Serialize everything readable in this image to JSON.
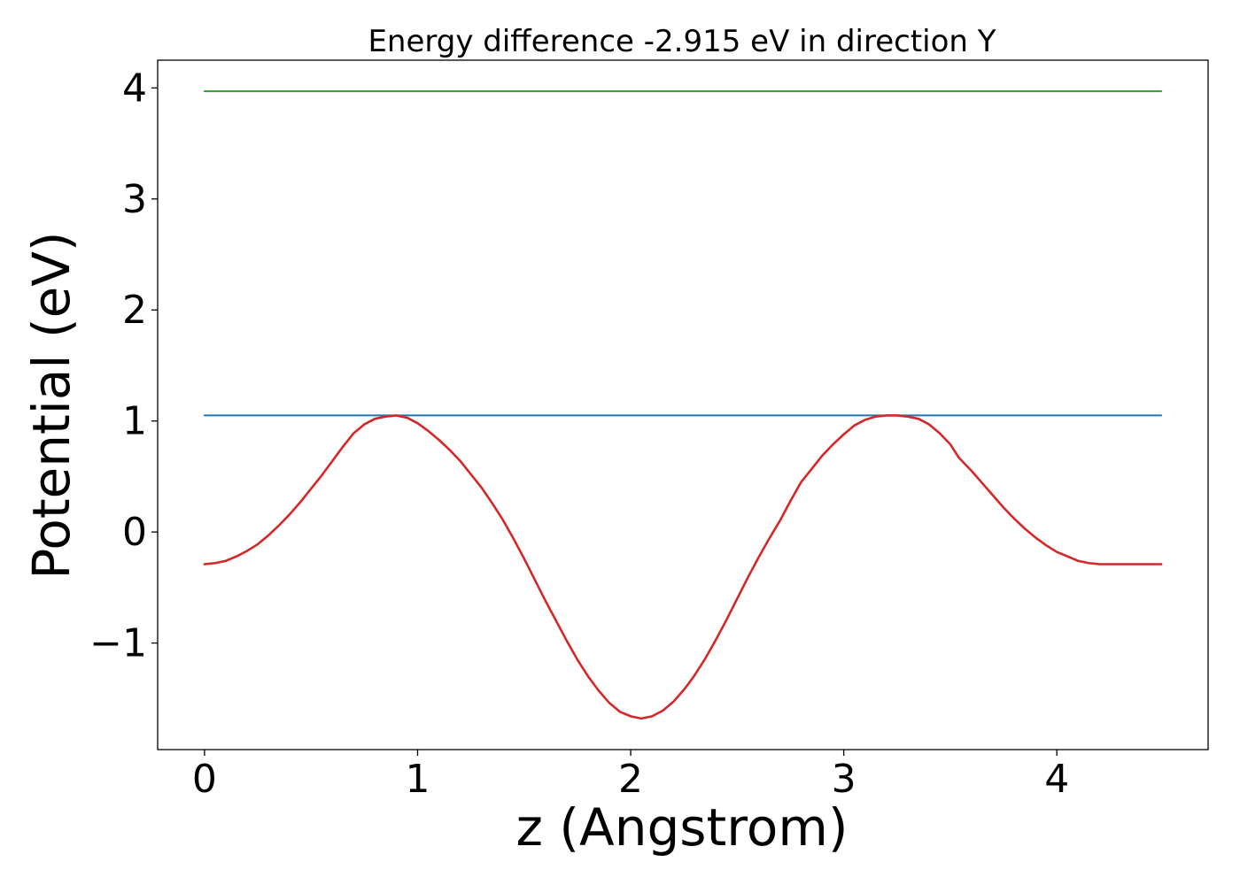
{
  "chart_data": {
    "type": "line",
    "title": "Energy difference -2.915 eV in direction Y",
    "xlabel": "z (Angstrom)",
    "ylabel": "Potential (eV)",
    "xlim": [
      -0.22,
      4.71
    ],
    "ylim": [
      -1.96,
      4.25
    ],
    "xticks": [
      0,
      1,
      2,
      3,
      4
    ],
    "xtick_labels": [
      "0",
      "1",
      "2",
      "3",
      "4"
    ],
    "yticks": [
      -1,
      0,
      1,
      2,
      3,
      4
    ],
    "ytick_labels": [
      "−1",
      "0",
      "1",
      "2",
      "3",
      "4"
    ],
    "grid": false,
    "legend": "none",
    "series": [
      {
        "color": "#2ca02c",
        "style": "horizontal",
        "x": [
          0,
          4.49
        ],
        "y": [
          3.97,
          3.97
        ]
      },
      {
        "color": "#1f77b4",
        "style": "horizontal",
        "x": [
          0,
          4.49
        ],
        "y": [
          1.05,
          1.05
        ]
      },
      {
        "color": "#d62728",
        "style": "curve",
        "x": [
          0,
          0.05,
          0.1,
          0.15,
          0.2,
          0.25,
          0.3,
          0.35,
          0.4,
          0.45,
          0.5,
          0.55,
          0.6,
          0.65,
          0.7,
          0.75,
          0.8,
          0.85,
          0.9,
          0.95,
          1.0,
          1.05,
          1.1,
          1.15,
          1.2,
          1.25,
          1.3,
          1.35,
          1.4,
          1.45,
          1.5,
          1.55,
          1.6,
          1.65,
          1.7,
          1.75,
          1.8,
          1.85,
          1.9,
          1.95,
          2.0,
          2.05,
          2.1,
          2.15,
          2.2,
          2.25,
          2.27,
          2.3,
          2.35,
          2.4,
          2.45,
          2.5,
          2.55,
          2.6,
          2.65,
          2.7,
          2.75,
          2.8,
          2.85,
          2.9,
          2.95,
          3.0,
          3.05,
          3.1,
          3.15,
          3.2,
          3.25,
          3.3,
          3.35,
          3.4,
          3.45,
          3.5,
          3.54,
          3.6,
          3.65,
          3.7,
          3.75,
          3.8,
          3.85,
          3.9,
          3.95,
          4.0,
          4.05,
          4.1,
          4.15,
          4.2,
          4.25,
          4.3,
          4.35,
          4.4,
          4.45,
          4.49
        ],
        "y": [
          -0.29,
          -0.28,
          -0.26,
          -0.22,
          -0.17,
          -0.11,
          -0.03,
          0.06,
          0.16,
          0.27,
          0.39,
          0.51,
          0.64,
          0.77,
          0.89,
          0.97,
          1.02,
          1.04,
          1.05,
          1.03,
          0.98,
          0.91,
          0.83,
          0.74,
          0.64,
          0.52,
          0.4,
          0.26,
          0.11,
          -0.06,
          -0.24,
          -0.43,
          -0.62,
          -0.8,
          -0.98,
          -1.15,
          -1.3,
          -1.43,
          -1.54,
          -1.62,
          -1.66,
          -1.68,
          -1.66,
          -1.61,
          -1.53,
          -1.42,
          -1.37,
          -1.29,
          -1.14,
          -0.97,
          -0.79,
          -0.6,
          -0.41,
          -0.23,
          -0.06,
          0.1,
          0.28,
          0.45,
          0.57,
          0.69,
          0.79,
          0.88,
          0.96,
          1.01,
          1.04,
          1.05,
          1.05,
          1.04,
          1.02,
          0.97,
          0.89,
          0.79,
          0.67,
          0.55,
          0.44,
          0.33,
          0.22,
          0.12,
          0.03,
          -0.05,
          -0.12,
          -0.18,
          -0.22,
          -0.26,
          -0.28,
          -0.29,
          -0.29,
          -0.29,
          -0.29,
          -0.29,
          -0.29,
          -0.29
        ]
      }
    ]
  },
  "colors": {
    "axes": "#000000",
    "background": "#ffffff"
  }
}
